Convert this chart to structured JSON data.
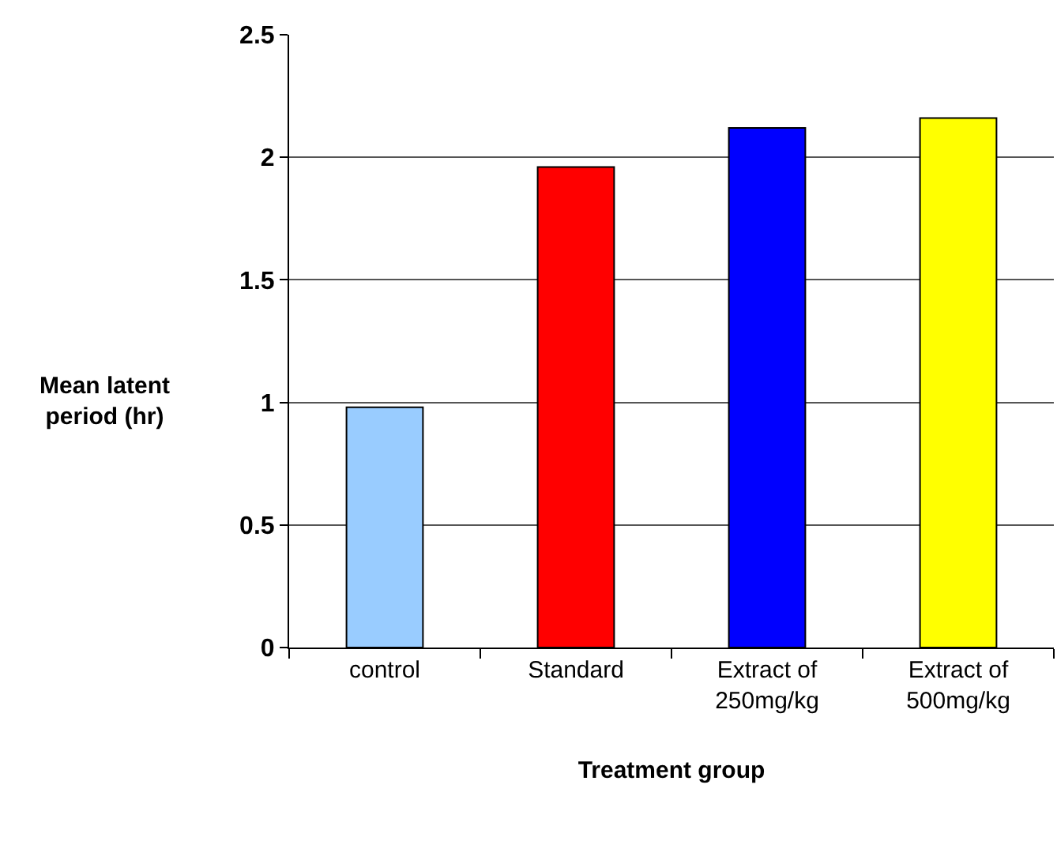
{
  "chart_data": {
    "type": "bar",
    "xlabel": "Treatment group",
    "ylabel": "Mean latent period (hr)",
    "categories": [
      "control",
      "Standard",
      "Extract of 250mg/kg",
      "Extract of 500mg/kg"
    ],
    "values": [
      0.98,
      1.96,
      2.12,
      2.16
    ],
    "colors": [
      "#99ccff",
      "#ff0000",
      "#0000ff",
      "#ffff00"
    ],
    "ylim": [
      0,
      2.5
    ],
    "yticks": [
      0,
      0.5,
      1,
      1.5,
      2,
      2.5
    ],
    "grid": "y"
  }
}
